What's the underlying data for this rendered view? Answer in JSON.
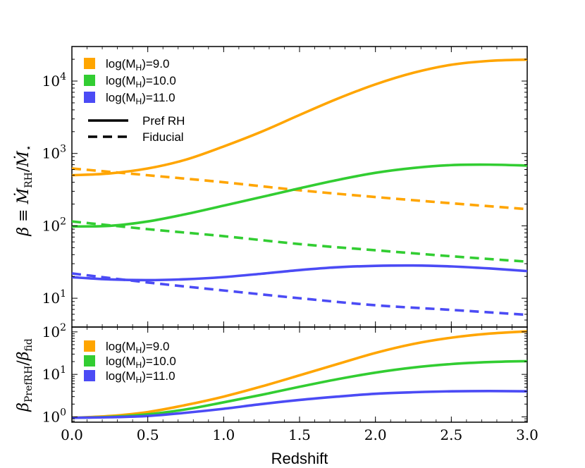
{
  "chart_data": {
    "type": "line",
    "xlabel": "Redshift",
    "xlim": [
      0.0,
      3.0
    ],
    "x_ticks": [
      "0.0",
      "0.5",
      "1.0",
      "1.5",
      "2.0",
      "2.5",
      "3.0"
    ],
    "panels": [
      {
        "id": "top",
        "ylabel": "β ≡ Ṁ_RH / Ṁ_⋆",
        "yscale": "log",
        "ylim": [
          4,
          30000
        ],
        "y_ticks": [
          {
            "base": "10",
            "exp": "1",
            "value": 10
          },
          {
            "base": "10",
            "exp": "2",
            "value": 100
          },
          {
            "base": "10",
            "exp": "3",
            "value": 1000
          },
          {
            "base": "10",
            "exp": "4",
            "value": 10000
          }
        ],
        "legend_masses": [
          {
            "prefix": "log(M",
            "sub": "H",
            "suffix": ")=9.0",
            "color": "#FFA500"
          },
          {
            "prefix": "log(M",
            "sub": "H",
            "suffix": ")=10.0",
            "color": "#32CD32"
          },
          {
            "prefix": "log(M",
            "sub": "H",
            "suffix": ")=11.0",
            "color": "#4B4BF5"
          }
        ],
        "legend_styles": [
          {
            "label": "Pref RH",
            "style": "solid"
          },
          {
            "label": "Fiducial",
            "style": "dashed"
          }
        ],
        "series": [
          {
            "name": "log(MH)=9.0 Pref RH",
            "color": "#FFA500",
            "style": "solid",
            "x": [
              0.0,
              0.25,
              0.5,
              0.75,
              1.0,
              1.25,
              1.5,
              1.75,
              2.0,
              2.25,
              2.5,
              2.75,
              3.0
            ],
            "y": [
              500,
              530,
              620,
              820,
              1250,
              2000,
              3400,
              5700,
              9000,
              13000,
              16800,
              19000,
              19800
            ]
          },
          {
            "name": "log(MH)=9.0 Fiducial",
            "color": "#FFA500",
            "style": "dashed",
            "x": [
              0.0,
              0.5,
              1.0,
              1.5,
              2.0,
              2.5,
              3.0
            ],
            "y": [
              620,
              500,
              400,
              310,
              250,
              205,
              170
            ]
          },
          {
            "name": "log(MH)=10.0 Pref RH",
            "color": "#32CD32",
            "style": "solid",
            "x": [
              0.0,
              0.25,
              0.5,
              0.75,
              1.0,
              1.25,
              1.5,
              1.75,
              2.0,
              2.25,
              2.5,
              2.75,
              3.0
            ],
            "y": [
              98,
              100,
              115,
              145,
              190,
              250,
              330,
              430,
              540,
              630,
              690,
              700,
              680
            ]
          },
          {
            "name": "log(MH)=10.0 Fiducial",
            "color": "#32CD32",
            "style": "dashed",
            "x": [
              0.0,
              0.5,
              1.0,
              1.5,
              2.0,
              2.5,
              3.0
            ],
            "y": [
              115,
              90,
              72,
              56,
              46,
              38,
              32
            ]
          },
          {
            "name": "log(MH)=11.0 Pref RH",
            "color": "#4B4BF5",
            "style": "solid",
            "x": [
              0.0,
              0.25,
              0.5,
              0.75,
              1.0,
              1.25,
              1.5,
              1.75,
              2.0,
              2.25,
              2.5,
              2.75,
              3.0
            ],
            "y": [
              19.5,
              18.2,
              17.8,
              18.3,
              19.6,
              21.8,
              24.5,
              26.8,
              28.0,
              28.3,
              27.5,
              25.8,
              23.7
            ]
          },
          {
            "name": "log(MH)=11.0 Fiducial",
            "color": "#4B4BF5",
            "style": "dashed",
            "x": [
              0.0,
              0.5,
              1.0,
              1.5,
              2.0,
              2.5,
              3.0
            ],
            "y": [
              22,
              16.5,
              12.8,
              10,
              8,
              6.9,
              5.9
            ]
          }
        ]
      },
      {
        "id": "bottom",
        "ylabel": "β_PrefRH / β_fid",
        "yscale": "log",
        "ylim": [
          0.75,
          130
        ],
        "y_ticks": [
          {
            "base": "10",
            "exp": "0",
            "value": 1
          },
          {
            "base": "10",
            "exp": "1",
            "value": 10
          },
          {
            "base": "10",
            "exp": "2",
            "value": 100
          }
        ],
        "legend_masses": [
          {
            "prefix": "log(M",
            "sub": "H",
            "suffix": ")=9.0",
            "color": "#FFA500"
          },
          {
            "prefix": "log(M",
            "sub": "H",
            "suffix": ")=10.0",
            "color": "#32CD32"
          },
          {
            "prefix": "log(M",
            "sub": "H",
            "suffix": ")=11.0",
            "color": "#4B4BF5"
          }
        ],
        "series": [
          {
            "name": "log(MH)=9.0 ratio",
            "color": "#FFA500",
            "style": "solid",
            "x": [
              0.0,
              0.25,
              0.5,
              0.75,
              1.0,
              1.25,
              1.5,
              1.75,
              2.0,
              2.25,
              2.5,
              2.75,
              3.0
            ],
            "y": [
              0.95,
              1.05,
              1.3,
              1.9,
              3.0,
              5.2,
              9.5,
              17.5,
              32,
              52,
              73,
              91,
              103
            ]
          },
          {
            "name": "log(MH)=10.0 ratio",
            "color": "#32CD32",
            "style": "solid",
            "x": [
              0.0,
              0.25,
              0.5,
              0.75,
              1.0,
              1.25,
              1.5,
              1.75,
              2.0,
              2.25,
              2.5,
              2.75,
              3.0
            ],
            "y": [
              0.95,
              1.0,
              1.15,
              1.5,
              2.2,
              3.3,
              5.1,
              7.7,
              11,
              14.5,
              17.5,
              19.5,
              20.5
            ]
          },
          {
            "name": "log(MH)=11.0 ratio",
            "color": "#4B4BF5",
            "style": "solid",
            "x": [
              0.0,
              0.25,
              0.5,
              0.75,
              1.0,
              1.25,
              1.5,
              1.75,
              2.0,
              2.25,
              2.5,
              2.75,
              3.0
            ],
            "y": [
              0.95,
              0.98,
              1.05,
              1.25,
              1.55,
              2.0,
              2.5,
              3.0,
              3.5,
              3.8,
              4.0,
              4.05,
              4.0
            ]
          }
        ]
      }
    ]
  }
}
